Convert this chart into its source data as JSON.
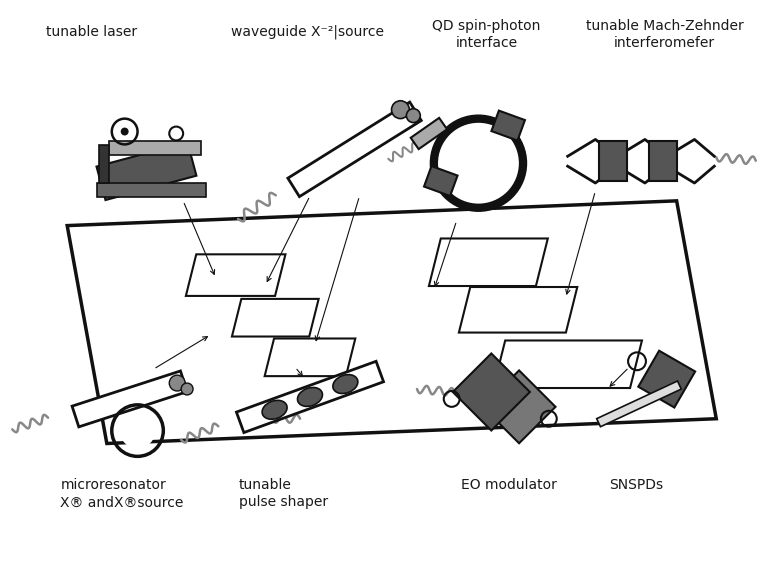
{
  "bg_color": "#ffffff",
  "text_color": "#1a1a1a",
  "dark": "#555555",
  "mid": "#888888",
  "light": "#cccccc",
  "outline": "#111111",
  "chip_fill": "#ffffff",
  "chip_outline": "#111111",
  "labels": {
    "tunable_laser": "tunable laser",
    "waveguide_source": "waveguide X⁻²|source",
    "qd_spin": "QD spin-photon\ninterface",
    "mach_zehnder": "tunable Mach-Zehnder\ninterferomefer",
    "microresonator": "microresonator\nX® andX®source",
    "pulse_shaper": "tunable\npulse shaper",
    "eo_modulator": "EO modulator",
    "snspds": "SNSPDs"
  }
}
